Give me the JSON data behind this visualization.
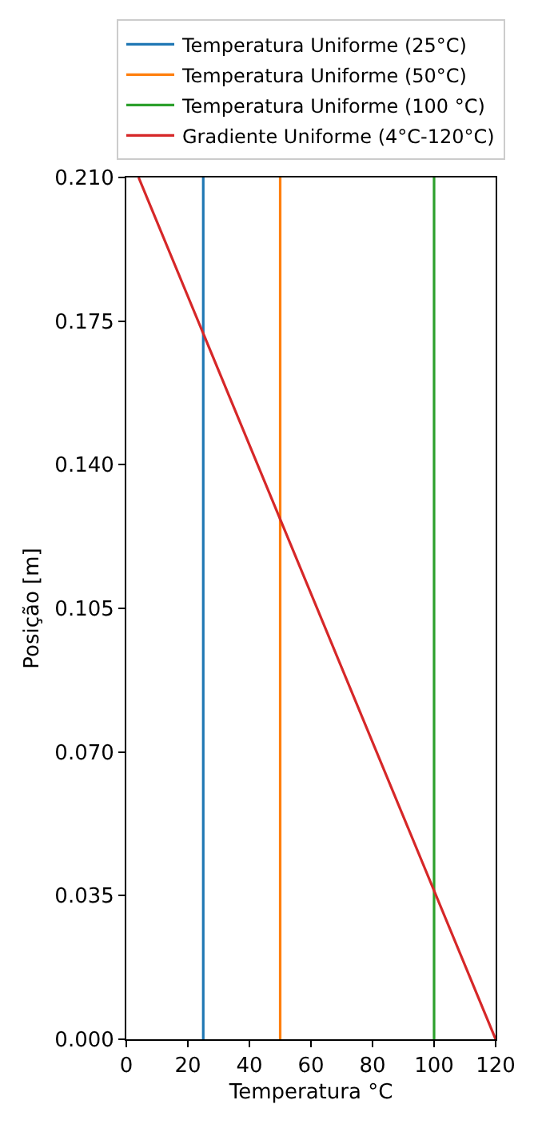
{
  "chart_data": {
    "type": "line",
    "xlabel": "Temperatura °C",
    "ylabel": "Posição [m]",
    "series": [
      {
        "name": "Temperatura Uniforme (25°C)",
        "color": "#1f77b4",
        "x": [
          25,
          25
        ],
        "values": [
          0,
          0.21
        ]
      },
      {
        "name": "Temperatura Uniforme (50°C)",
        "color": "#ff7f0e",
        "x": [
          50,
          50
        ],
        "values": [
          0,
          0.21
        ]
      },
      {
        "name": "Temperatura Uniforme (100 °C)",
        "color": "#2ca02c",
        "x": [
          100,
          100
        ],
        "values": [
          0,
          0.21
        ]
      },
      {
        "name": "Gradiente Uniforme (4°C-120°C)",
        "color": "#d62728",
        "x": [
          4,
          120
        ],
        "values": [
          0.21,
          0
        ]
      }
    ],
    "xlim": [
      0,
      120
    ],
    "xticks": [
      0,
      20,
      40,
      60,
      80,
      100,
      120
    ],
    "ylim": [
      0,
      0.21
    ],
    "yticks": [
      {
        "value": 0,
        "label": "0.000"
      },
      {
        "value": 0.035,
        "label": "0.035"
      },
      {
        "value": 0.07,
        "label": "0.070"
      },
      {
        "value": 0.105,
        "label": "0.105"
      },
      {
        "value": 0.14,
        "label": "0.140"
      },
      {
        "value": 0.175,
        "label": "0.175"
      },
      {
        "value": 0.21,
        "label": "0.210"
      }
    ],
    "legend": "top",
    "marker": "none",
    "line_style": "solid"
  }
}
